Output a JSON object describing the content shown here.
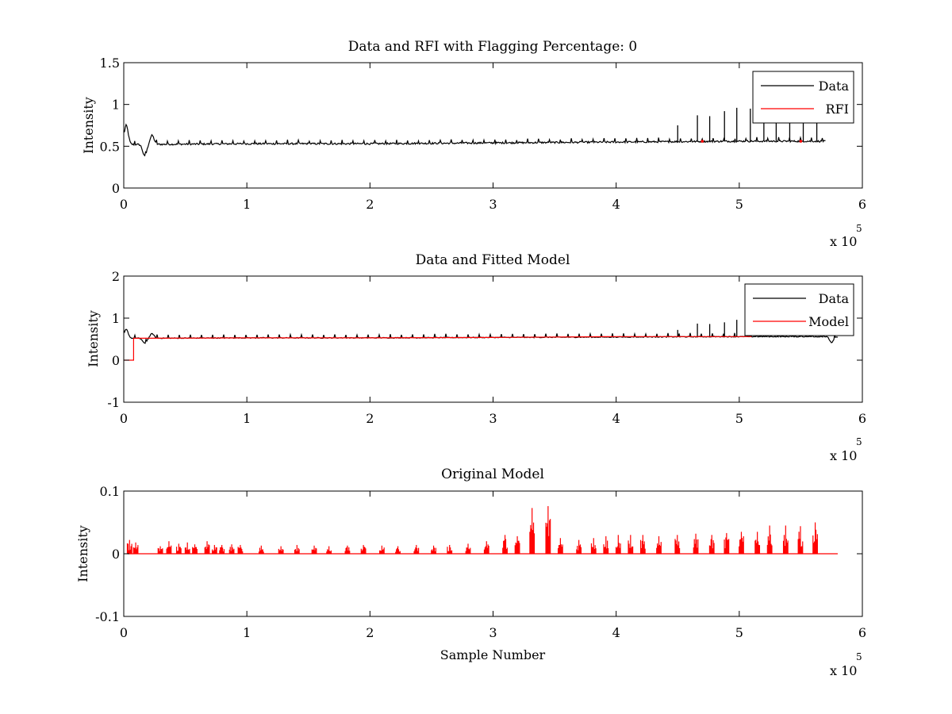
{
  "figure": {
    "background": "#ffffff"
  },
  "chart_data": [
    {
      "type": "line",
      "title": "Data and RFI with Flagging Percentage: 0",
      "xlabel": "",
      "ylabel": "Intensity",
      "xlim": [
        0,
        6
      ],
      "ylim": [
        0,
        1.5
      ],
      "x_multiplier_text": "x 10",
      "x_multiplier_exp": "5",
      "xticks": [
        "0",
        "1",
        "2",
        "3",
        "4",
        "5",
        "6"
      ],
      "yticks": [
        "0",
        "0.5",
        "1",
        "1.5"
      ],
      "ytick_values": [
        0,
        0.5,
        1,
        1.5
      ],
      "legend": {
        "position": "top-right",
        "entries": [
          {
            "label": "Data",
            "color": "#000000"
          },
          {
            "label": "RFI",
            "color": "#ff0000"
          }
        ]
      },
      "series": [
        {
          "name": "Data",
          "color": "#000000",
          "baseline": [
            [
              0,
              0.52
            ],
            [
              1,
              0.53
            ],
            [
              2,
              0.53
            ],
            [
              3,
              0.54
            ],
            [
              4,
              0.55
            ],
            [
              5,
              0.56
            ],
            [
              5.7,
              0.56
            ]
          ],
          "features": [
            {
              "x": 0.02,
              "y": 0.75
            },
            {
              "x": 0.17,
              "y": 0.38
            },
            {
              "x": 0.23,
              "y": 0.63
            },
            {
              "x": 5.75,
              "y": 0.43
            },
            {
              "x": 5.8,
              "y": 0.67
            }
          ],
          "spikes": [
            {
              "x": 4.5,
              "y": 0.75
            },
            {
              "x": 4.66,
              "y": 0.87
            },
            {
              "x": 4.76,
              "y": 0.86
            },
            {
              "x": 4.88,
              "y": 0.92
            },
            {
              "x": 4.98,
              "y": 0.96
            },
            {
              "x": 5.09,
              "y": 0.95
            },
            {
              "x": 5.2,
              "y": 0.96
            },
            {
              "x": 5.3,
              "y": 0.91
            },
            {
              "x": 5.41,
              "y": 0.82
            },
            {
              "x": 5.52,
              "y": 0.83
            },
            {
              "x": 5.63,
              "y": 0.84
            }
          ]
        },
        {
          "name": "RFI",
          "color": "#ff0000",
          "points": [
            [
              4.7,
              0.56
            ],
            [
              5.5,
              0.56
            ]
          ]
        }
      ]
    },
    {
      "type": "line",
      "title": "Data and Fitted Model",
      "xlabel": "",
      "ylabel": "Intensity",
      "xlim": [
        0,
        6
      ],
      "ylim": [
        -1,
        2
      ],
      "x_multiplier_text": "x 10",
      "x_multiplier_exp": "5",
      "xticks": [
        "0",
        "1",
        "2",
        "3",
        "4",
        "5",
        "6"
      ],
      "yticks": [
        "-1",
        "0",
        "1",
        "2"
      ],
      "ytick_values": [
        -1,
        0,
        1,
        2
      ],
      "legend": {
        "position": "top-right",
        "entries": [
          {
            "label": "Data",
            "color": "#000000"
          },
          {
            "label": "Model",
            "color": "#ff0000"
          }
        ]
      },
      "series": [
        {
          "name": "Data",
          "color": "#000000",
          "baseline": [
            [
              0,
              0.52
            ],
            [
              1,
              0.53
            ],
            [
              2,
              0.53
            ],
            [
              3,
              0.54
            ],
            [
              4,
              0.55
            ],
            [
              5,
              0.56
            ],
            [
              5.8,
              0.56
            ]
          ],
          "features": [
            {
              "x": 0.02,
              "y": 0.73
            },
            {
              "x": 0.17,
              "y": 0.4
            },
            {
              "x": 0.23,
              "y": 0.63
            },
            {
              "x": 5.75,
              "y": 0.42
            },
            {
              "x": 5.8,
              "y": 0.55
            }
          ],
          "spikes": [
            {
              "x": 4.5,
              "y": 0.72
            },
            {
              "x": 4.66,
              "y": 0.87
            },
            {
              "x": 4.76,
              "y": 0.86
            },
            {
              "x": 4.88,
              "y": 0.9
            },
            {
              "x": 4.98,
              "y": 0.96
            }
          ]
        },
        {
          "name": "Model",
          "color": "#ff0000",
          "points": [
            [
              0,
              0
            ],
            [
              0.08,
              0
            ],
            [
              0.08,
              0.52
            ],
            [
              1,
              0.53
            ],
            [
              2,
              0.53
            ],
            [
              3,
              0.54
            ],
            [
              4,
              0.56
            ],
            [
              5,
              0.56
            ],
            [
              5.1,
              0.56
            ]
          ]
        }
      ]
    },
    {
      "type": "line",
      "title": "Original Model",
      "xlabel": "Sample Number",
      "ylabel": "Intensity",
      "xlim": [
        0,
        6
      ],
      "ylim": [
        -0.1,
        0.1
      ],
      "x_multiplier_text": "x 10",
      "x_multiplier_exp": "5",
      "xticks": [
        "0",
        "1",
        "2",
        "3",
        "4",
        "5",
        "6"
      ],
      "yticks": [
        "-0.1",
        "0",
        "0.1"
      ],
      "ytick_values": [
        -0.1,
        0,
        0.1
      ],
      "legend": null,
      "series": [
        {
          "name": "",
          "color": "#ff0000",
          "baseline_value": 0,
          "x_range": [
            0.03,
            5.8
          ],
          "spikes": [
            {
              "x": 0.05,
              "y": 0.022
            },
            {
              "x": 0.1,
              "y": 0.018
            },
            {
              "x": 0.3,
              "y": 0.012
            },
            {
              "x": 0.37,
              "y": 0.02
            },
            {
              "x": 0.45,
              "y": 0.016
            },
            {
              "x": 0.52,
              "y": 0.018
            },
            {
              "x": 0.58,
              "y": 0.015
            },
            {
              "x": 0.68,
              "y": 0.02
            },
            {
              "x": 0.74,
              "y": 0.014
            },
            {
              "x": 0.8,
              "y": 0.014
            },
            {
              "x": 0.88,
              "y": 0.015
            },
            {
              "x": 0.95,
              "y": 0.014
            },
            {
              "x": 1.12,
              "y": 0.013
            },
            {
              "x": 1.28,
              "y": 0.012
            },
            {
              "x": 1.41,
              "y": 0.014
            },
            {
              "x": 1.55,
              "y": 0.013
            },
            {
              "x": 1.67,
              "y": 0.012
            },
            {
              "x": 1.82,
              "y": 0.013
            },
            {
              "x": 1.95,
              "y": 0.014
            },
            {
              "x": 2.1,
              "y": 0.013
            },
            {
              "x": 2.23,
              "y": 0.012
            },
            {
              "x": 2.38,
              "y": 0.014
            },
            {
              "x": 2.52,
              "y": 0.013
            },
            {
              "x": 2.65,
              "y": 0.014
            },
            {
              "x": 2.8,
              "y": 0.016
            },
            {
              "x": 2.95,
              "y": 0.02
            },
            {
              "x": 3.1,
              "y": 0.03
            },
            {
              "x": 3.2,
              "y": 0.028
            },
            {
              "x": 3.32,
              "y": 0.073
            },
            {
              "x": 3.45,
              "y": 0.076
            },
            {
              "x": 3.55,
              "y": 0.025
            },
            {
              "x": 3.7,
              "y": 0.022
            },
            {
              "x": 3.82,
              "y": 0.025
            },
            {
              "x": 3.92,
              "y": 0.028
            },
            {
              "x": 4.02,
              "y": 0.03
            },
            {
              "x": 4.12,
              "y": 0.03
            },
            {
              "x": 4.22,
              "y": 0.03
            },
            {
              "x": 4.35,
              "y": 0.028
            },
            {
              "x": 4.5,
              "y": 0.03
            },
            {
              "x": 4.65,
              "y": 0.032
            },
            {
              "x": 4.78,
              "y": 0.03
            },
            {
              "x": 4.9,
              "y": 0.033
            },
            {
              "x": 5.02,
              "y": 0.035
            },
            {
              "x": 5.15,
              "y": 0.035
            },
            {
              "x": 5.25,
              "y": 0.045
            },
            {
              "x": 5.38,
              "y": 0.045
            },
            {
              "x": 5.5,
              "y": 0.044
            },
            {
              "x": 5.62,
              "y": 0.05
            }
          ]
        }
      ]
    }
  ]
}
